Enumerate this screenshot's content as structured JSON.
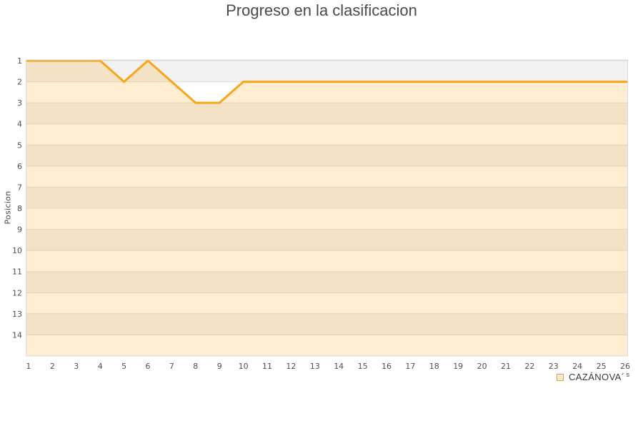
{
  "chart_data": {
    "type": "line",
    "title": "Progreso en la clasificacion",
    "ylabel": "Posicion",
    "xlabel": "",
    "x": [
      1,
      2,
      3,
      4,
      5,
      6,
      7,
      8,
      9,
      10,
      11,
      12,
      13,
      14,
      15,
      16,
      17,
      18,
      19,
      20,
      21,
      22,
      23,
      24,
      25,
      26
    ],
    "y_ticks": [
      1,
      2,
      3,
      4,
      5,
      6,
      7,
      8,
      9,
      10,
      11,
      12,
      13,
      14
    ],
    "ylim": [
      1,
      15
    ],
    "y_axis_inverted": true,
    "grid": "horizontal-bands",
    "legend_position": "bottom-right",
    "series": [
      {
        "name": "CAZÁNOVA´s",
        "color": "#faa419",
        "area_opacity": 0.2,
        "values": [
          1,
          1,
          1,
          1,
          2,
          1,
          2,
          3,
          3,
          2,
          2,
          2,
          2,
          2,
          2,
          2,
          2,
          2,
          2,
          2,
          2,
          2,
          2,
          2,
          2,
          2
        ]
      }
    ],
    "band_colors": [
      "#f2f2f2",
      "#ffffff"
    ],
    "grid_color": "#dcdcdc",
    "border_color": "#d9d9d9"
  },
  "legend": {
    "label_main": "CAZÁNOVA´",
    "label_sup": "s",
    "swatch_fill": "#fae9c9",
    "swatch_border": "#cba35c"
  },
  "colors": {
    "title_text": "#4a4a4a",
    "tick_text": "#4f4f4f",
    "axis_title_text": "#444444"
  }
}
